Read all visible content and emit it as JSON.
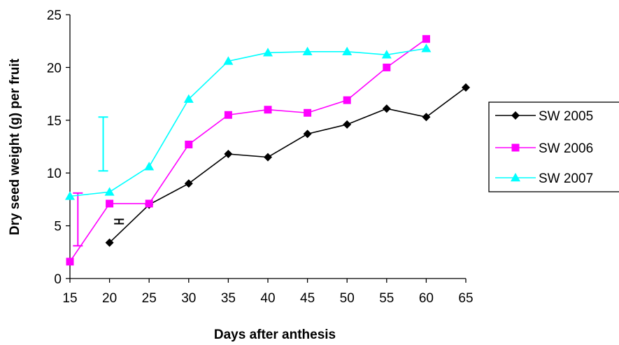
{
  "chart_data": {
    "type": "line",
    "title": "",
    "xlabel": "Days after anthesis",
    "ylabel": "Dry seed weight (g) per fruit",
    "xlim": [
      15,
      65
    ],
    "ylim": [
      0,
      25
    ],
    "x_ticks": [
      "15",
      "20",
      "25",
      "30",
      "35",
      "40",
      "45",
      "50",
      "55",
      "60",
      "65"
    ],
    "y_ticks": [
      "0",
      "5",
      "10",
      "15",
      "20",
      "25"
    ],
    "grid": false,
    "legend_position": "right",
    "series": [
      {
        "name": "SW 2005",
        "color": "#000000",
        "marker": "diamond",
        "x": [
          20,
          25,
          30,
          35,
          40,
          45,
          50,
          55,
          60,
          65
        ],
        "y": [
          3.4,
          7.0,
          9.0,
          11.8,
          11.5,
          13.7,
          14.6,
          16.1,
          15.3,
          18.1
        ]
      },
      {
        "name": "SW 2006",
        "color": "#ff00ff",
        "marker": "square",
        "x": [
          15,
          20,
          25,
          30,
          35,
          40,
          45,
          50,
          55,
          60
        ],
        "y": [
          1.6,
          7.1,
          7.1,
          12.7,
          15.5,
          16.0,
          15.7,
          16.9,
          20.0,
          22.7
        ]
      },
      {
        "name": "SW 2007",
        "color": "#00ffff",
        "marker": "triangle",
        "x": [
          15,
          20,
          25,
          30,
          35,
          40,
          45,
          50,
          55,
          60
        ],
        "y": [
          7.8,
          8.2,
          10.6,
          17.0,
          20.6,
          21.4,
          21.5,
          21.5,
          21.2,
          21.8
        ]
      }
    ],
    "error_bars": [
      {
        "series": "SW 2007",
        "color": "#00ffff",
        "x": 19.2,
        "y_low": 10.2,
        "y_high": 15.3
      },
      {
        "series": "SW 2006",
        "color": "#ff00ff",
        "x": 16.0,
        "y_low": 3.1,
        "y_high": 8.1
      },
      {
        "series": "SW 2005",
        "color": "#000000",
        "x": 21.2,
        "y_low": 5.2,
        "y_high": 5.6
      }
    ]
  }
}
